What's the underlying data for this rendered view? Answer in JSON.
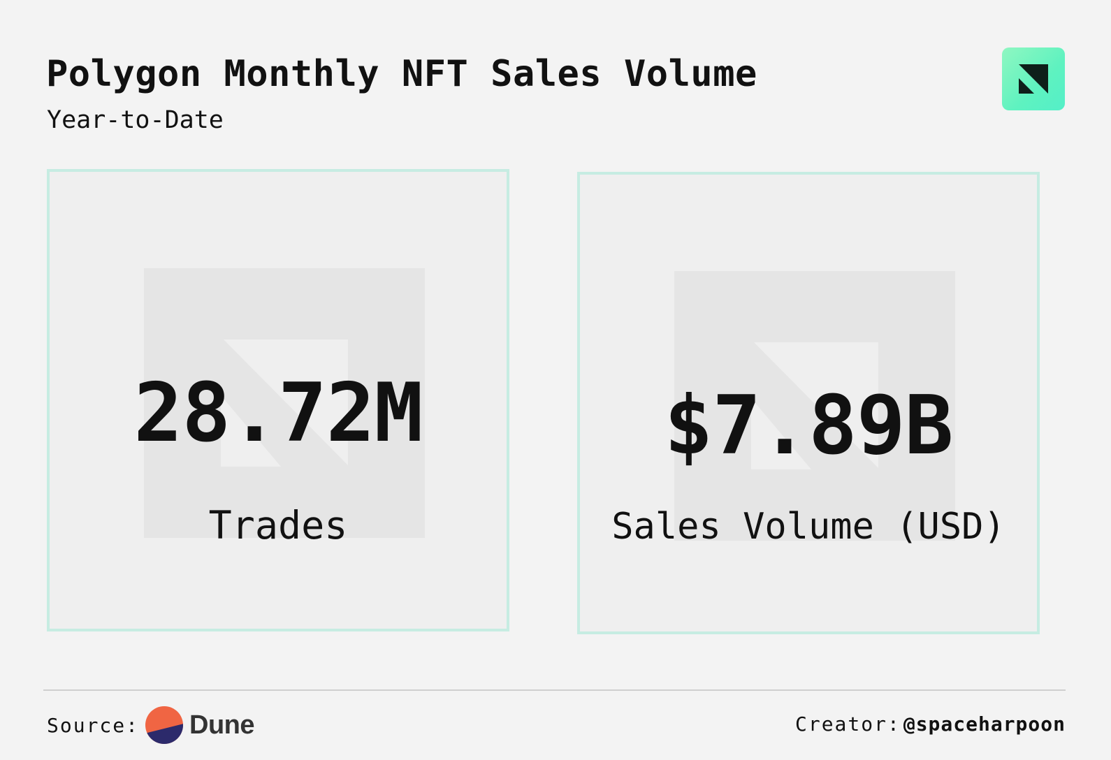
{
  "header": {
    "title": "Polygon Monthly NFT Sales Volume",
    "subtitle": "Year-to-Date",
    "logo_icon": "dune-corner-arrow-icon"
  },
  "metrics": [
    {
      "value": "28.72M",
      "label": "Trades"
    },
    {
      "value": "$7.89B",
      "label": "Sales Volume (USD)"
    }
  ],
  "footer": {
    "source_label": "Source:",
    "source_name": "Dune",
    "creator_label": "Creator:",
    "creator_handle": "@spaceharpoon"
  },
  "colors": {
    "background": "#f3f3f3",
    "card_border": "#c6ece2",
    "card_fill": "#efefef",
    "accent": "#5ef2c0",
    "dune_orange": "#f06543",
    "dune_navy": "#2c2a6b"
  }
}
